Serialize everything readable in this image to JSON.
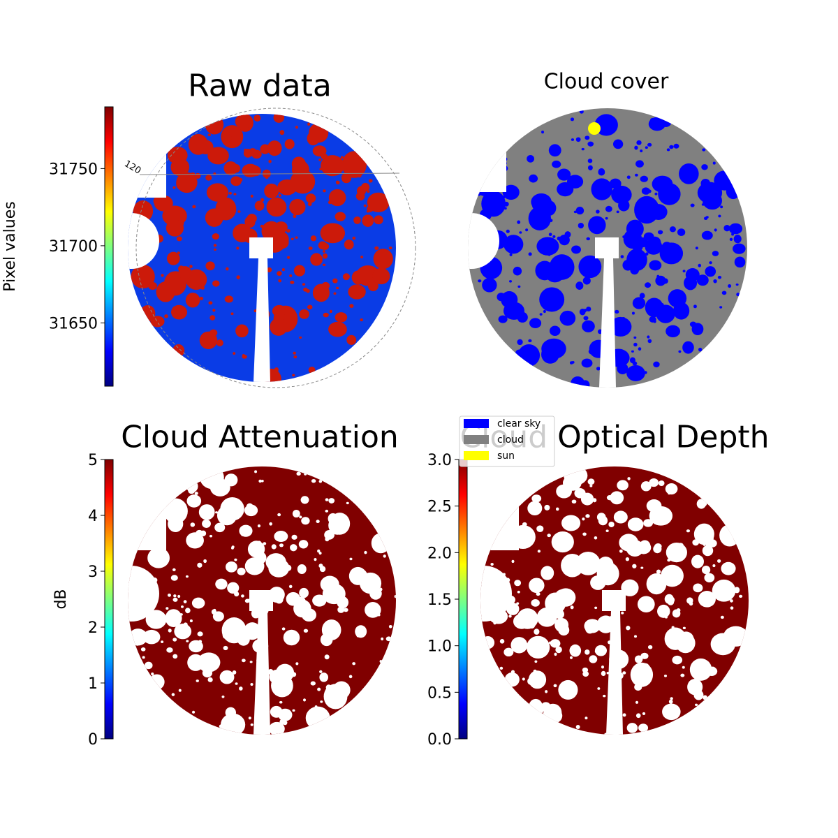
{
  "chart_data": [
    {
      "type": "image",
      "title": "Raw data",
      "colorbar_label": "Pixel values",
      "colormap": "jet",
      "ylim": [
        31609,
        31790
      ],
      "yticks": [
        31650,
        31700,
        31750
      ],
      "annotation": "120"
    },
    {
      "type": "image",
      "title": "Cloud cover",
      "series": [
        {
          "name": "clear sky",
          "color": "#0000ff"
        },
        {
          "name": "cloud",
          "color": "#808080"
        },
        {
          "name": "sun",
          "color": "#ffff00"
        }
      ],
      "legend_loc": "lower left"
    },
    {
      "type": "image",
      "title": "Cloud Attenuation",
      "colorbar_label": "dB",
      "colormap": "jet",
      "ylim": [
        0,
        5
      ],
      "yticks": [
        0,
        1,
        2,
        3,
        4,
        5
      ]
    },
    {
      "type": "image",
      "title": "Cloud Optical Depth",
      "colormap": "jet",
      "ylim": [
        0,
        3
      ],
      "yticks": [
        {
          "value": 0,
          "label": "0.0"
        },
        {
          "value": 0.5,
          "label": "0.5"
        },
        {
          "value": 1,
          "label": "1.0"
        },
        {
          "value": 1.5,
          "label": "1.5"
        },
        {
          "value": 2,
          "label": "2.0"
        },
        {
          "value": 2.5,
          "label": "2.5"
        },
        {
          "value": 3,
          "label": "3.0"
        }
      ]
    }
  ]
}
